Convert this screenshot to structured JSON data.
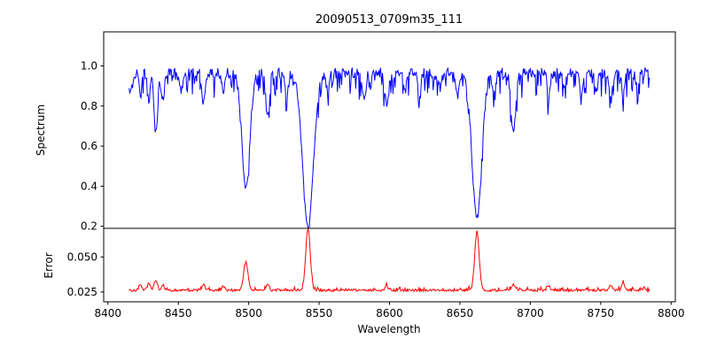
{
  "figure": {
    "title": "20090513_0709m35_111",
    "background": "#ffffff",
    "text_color": "#000000"
  },
  "chart_data": [
    {
      "type": "line",
      "name": "spectrum-panel",
      "title": "20090513_0709m35_111",
      "ylabel": "Spectrum",
      "color": "#0000ff",
      "xlim": [
        8397,
        8803
      ],
      "ylim": [
        0.19,
        1.17
      ],
      "yticks": {
        "values": [
          0.2,
          0.4,
          0.6,
          0.8,
          1.0
        ],
        "labels": [
          "0.2",
          "0.4",
          "0.6",
          "0.8",
          "1.0"
        ]
      },
      "x_start": 8415,
      "x_end": 8785,
      "x_step": 0.5,
      "continuum": 0.965,
      "noise": {
        "amplitude": 0.055,
        "dip_probability": 0.28,
        "dip_depth": 0.11
      },
      "absorption_lines": [
        {
          "center": 8416.0,
          "depth": 0.1,
          "width": 1.5
        },
        {
          "center": 8423.0,
          "depth": 0.1,
          "width": 1.0
        },
        {
          "center": 8429.0,
          "depth": 0.12,
          "width": 1.0
        },
        {
          "center": 8434.0,
          "depth": 0.3,
          "width": 1.3
        },
        {
          "center": 8439.0,
          "depth": 0.13,
          "width": 1.0
        },
        {
          "center": 8452.0,
          "depth": 0.1,
          "width": 1.0
        },
        {
          "center": 8468.0,
          "depth": 0.15,
          "width": 1.2
        },
        {
          "center": 8482.0,
          "depth": 0.1,
          "width": 1.0
        },
        {
          "center": 8498.0,
          "depth": 0.575,
          "width": 2.8
        },
        {
          "center": 8513.5,
          "depth": 0.22,
          "width": 1.3
        },
        {
          "center": 8527.0,
          "depth": 0.1,
          "width": 1.0
        },
        {
          "center": 8542.1,
          "depth": 0.765,
          "width": 3.8
        },
        {
          "center": 8556.0,
          "depth": 0.08,
          "width": 1.0
        },
        {
          "center": 8582.0,
          "depth": 0.14,
          "width": 1.2
        },
        {
          "center": 8598.0,
          "depth": 0.16,
          "width": 1.3
        },
        {
          "center": 8611.0,
          "depth": 0.1,
          "width": 1.0
        },
        {
          "center": 8621.0,
          "depth": 0.12,
          "width": 1.1
        },
        {
          "center": 8636.0,
          "depth": 0.08,
          "width": 1.0
        },
        {
          "center": 8648.0,
          "depth": 0.12,
          "width": 1.1
        },
        {
          "center": 8662.1,
          "depth": 0.72,
          "width": 3.4
        },
        {
          "center": 8674.0,
          "depth": 0.1,
          "width": 1.0
        },
        {
          "center": 8688.0,
          "depth": 0.3,
          "width": 1.6
        },
        {
          "center": 8713.0,
          "depth": 0.12,
          "width": 1.1
        },
        {
          "center": 8724.0,
          "depth": 0.08,
          "width": 1.0
        },
        {
          "center": 8736.0,
          "depth": 0.1,
          "width": 1.0
        },
        {
          "center": 8747.0,
          "depth": 0.08,
          "width": 1.0
        },
        {
          "center": 8757.0,
          "depth": 0.13,
          "width": 1.1
        },
        {
          "center": 8766.0,
          "depth": 0.12,
          "width": 1.0
        },
        {
          "center": 8776.0,
          "depth": 0.08,
          "width": 1.0
        }
      ]
    },
    {
      "type": "line",
      "name": "error-panel",
      "xlabel": "Wavelength",
      "ylabel": "Error",
      "color": "#ff0000",
      "xlim": [
        8397,
        8803
      ],
      "ylim": [
        0.018,
        0.0705
      ],
      "yticks": {
        "values": [
          0.025,
          0.05
        ],
        "labels": [
          "0.025",
          "0.050"
        ]
      },
      "xticks": {
        "values": [
          8400,
          8450,
          8500,
          8550,
          8600,
          8650,
          8700,
          8750,
          8800
        ],
        "labels": [
          "8400",
          "8450",
          "8500",
          "8550",
          "8600",
          "8650",
          "8700",
          "8750",
          "8800"
        ]
      },
      "x_start": 8415,
      "x_end": 8785,
      "x_step": 0.5,
      "baseline": 0.0262,
      "noise": {
        "amplitude": 0.0016,
        "spike_probability": 0.18,
        "spike_height": 0.0022
      },
      "error_spikes": [
        {
          "center": 8423.0,
          "height": 0.004,
          "width": 1.0
        },
        {
          "center": 8429.0,
          "height": 0.005,
          "width": 1.0
        },
        {
          "center": 8434.0,
          "height": 0.007,
          "width": 1.2
        },
        {
          "center": 8439.0,
          "height": 0.004,
          "width": 1.0
        },
        {
          "center": 8468.0,
          "height": 0.004,
          "width": 1.0
        },
        {
          "center": 8482.0,
          "height": 0.003,
          "width": 1.0
        },
        {
          "center": 8498.0,
          "height": 0.02,
          "width": 1.5
        },
        {
          "center": 8513.5,
          "height": 0.0045,
          "width": 1.1
        },
        {
          "center": 8542.1,
          "height": 0.044,
          "width": 1.6
        },
        {
          "center": 8598.0,
          "height": 0.003,
          "width": 1.0
        },
        {
          "center": 8662.1,
          "height": 0.041,
          "width": 1.6
        },
        {
          "center": 8688.0,
          "height": 0.0045,
          "width": 1.2
        },
        {
          "center": 8713.0,
          "height": 0.003,
          "width": 1.0
        },
        {
          "center": 8757.0,
          "height": 0.004,
          "width": 1.0
        },
        {
          "center": 8766.0,
          "height": 0.005,
          "width": 1.0
        }
      ]
    }
  ]
}
